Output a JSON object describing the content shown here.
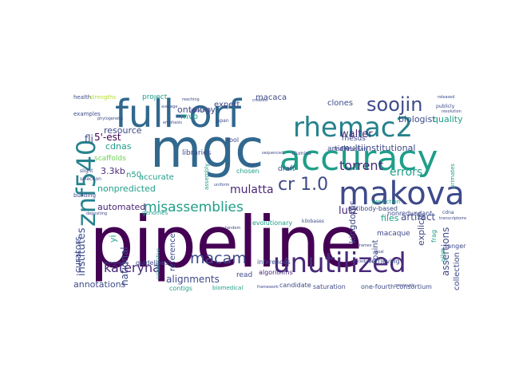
{
  "words": {
    "pipeline": "pipeline",
    "mgc": "mgc",
    "full_orf": "full-orf",
    "accuracy": "accuracy",
    "makova": "makova",
    "unutilized": "unutilized",
    "rhemac2": "rhemac2",
    "znf540": "znf540",
    "soojin": "soojin",
    "cr_1_0": "cr 1.0",
    "misassemblies": "misassemblies",
    "macam": "macam",
    "kateryna": "kateryna",
    "torrent": "torrent",
    "errors": "errors",
    "mulatta": "mulatta",
    "institutes": "institutes",
    "national": "national",
    "curators": "curators",
    "annotations": "annotations",
    "alignments": "alignments",
    "assertions": "assertions",
    "multiinstitutional": "multiinstitutional",
    "nonpredicted": "nonpredicted",
    "automated": "automated",
    "resource": "resource",
    "ontology": "ontology",
    "biologist": "biologist",
    "quality": "quality",
    "walter": "walter",
    "lutz": "lutz",
    "kingdoms": "kingdoms",
    "paint": "paint",
    "explicit": "explicit",
    "macaque": "macaque",
    "rhesus": "rhesus",
    "collection": "collection",
    "five_est": "5'-est",
    "flj": "flj",
    "cdnas": "cdnas",
    "scaffolds": "scaffolds",
    "kb": "3.3kb",
    "n50": "n50",
    "accurate": "accurate",
    "expert": "expert",
    "mvp": "mvp",
    "macaca": "macaca",
    "project": "project",
    "clones": "clones",
    "libraries": "libraries",
    "draft": "draft",
    "article": "article",
    "artifact": "artifact",
    "files": "files",
    "reference": "reference",
    "yi": "yi",
    "read": "read",
    "guidelines": "guidelines",
    "contigs": "contigs",
    "inferences": "inferences",
    "retrieving": "retrieving",
    "nonredundant": "nonredundant",
    "collaborative": "collaborative",
    "antibody_based": "antibody-based",
    "sanger": "sanger",
    "evolutionary": "evolutionary",
    "chosen": "chosen",
    "tool": "tool",
    "assembly": "assembly",
    "mammalian": "mammalian",
    "genomes": "genomes",
    "frag": "frag",
    "pilot": "pilot",
    "algorithms": "algorithms",
    "saturation": "saturation",
    "candidate": "candidate",
    "one_fourth": "one-fourth",
    "consortium": "consortium",
    "prediction": "prediction",
    "biomedical": "biomedical",
    "health": "health",
    "strengths": "strengths",
    "examples": "examples",
    "phylogenetic": "phylogenetic",
    "emphasis": "emphasis",
    "japan": "japan",
    "reaching": "reaching",
    "released": "released",
    "publicly": "publicly",
    "primates": "primates",
    "selection": "selection",
    "building": "building",
    "slight": "slight",
    "uniform": "uniform",
    "procedures": "procedures",
    "framework": "framework",
    "kilobases": "kilobases",
    "sequenced": "sequenced",
    "illumina": "illumina",
    "gaps": "gaps",
    "frames": "frames",
    "resolution": "resolution",
    "transcriptome": "transcriptome",
    "depositing": "depositing",
    "incorporates": "incorporates",
    "tandem": "tandem",
    "previously": "previously",
    "cdna": "cdna",
    "average": "average",
    "advancing": "advancing",
    "created": "created",
    "goal": "goal"
  },
  "colors": {
    "dark_purple": "#440154",
    "indigo": "#482878",
    "navy_blue": "#3e4a89",
    "slate_blue": "#31688e",
    "teal_blue": "#26828e",
    "teal": "#1f9e89",
    "green": "#35b779",
    "light_green": "#6ece58",
    "lime": "#b5de2b",
    "yellow": "#fde725"
  }
}
